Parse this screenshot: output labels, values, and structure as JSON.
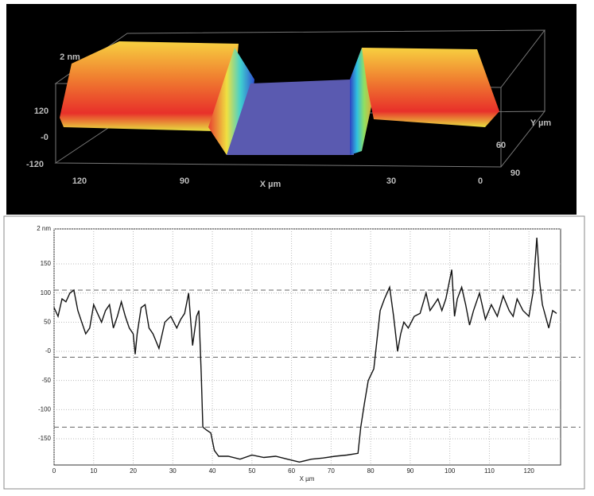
{
  "surface_render": {
    "labels": [
      "2 nm",
      "120",
      "-0",
      "-120",
      "120",
      "90",
      "X µm",
      "30",
      "0",
      "Y µm",
      "60",
      "90"
    ]
  },
  "chart_data": {
    "type": "line",
    "x_label": "X µm",
    "series": [
      {
        "color": "#111111",
        "x": [
          0,
          1,
          2,
          3,
          4,
          5,
          6,
          7,
          8,
          9,
          10,
          11,
          12,
          13,
          14,
          15,
          16,
          17,
          18,
          19,
          20,
          20.5,
          21,
          22,
          23,
          24,
          25,
          26.5,
          28,
          29.5,
          31,
          32,
          33,
          34,
          35,
          36,
          36.6,
          37.2,
          37.6,
          38.5,
          39.6,
          40.5,
          41.6,
          44,
          47,
          50,
          53,
          56,
          59,
          62,
          65,
          68,
          71,
          74,
          76.8,
          77.5,
          78.4,
          79.4,
          80.8,
          82.4,
          83.5,
          84.8,
          85.8,
          86.8,
          87.6,
          88.4,
          89.5,
          91,
          92.5,
          94,
          95,
          96,
          97,
          98,
          99,
          100.5,
          101.2,
          101.9,
          103,
          104,
          105,
          106,
          107.5,
          109,
          110.5,
          112,
          113.5,
          115,
          116,
          117,
          118.5,
          120,
          121,
          122,
          122.7,
          123.4,
          124.2,
          125,
          126,
          127
        ],
        "values": [
          75,
          60,
          90,
          85,
          100,
          105,
          70,
          50,
          30,
          40,
          80,
          65,
          50,
          70,
          80,
          40,
          60,
          85,
          60,
          40,
          30,
          -5,
          30,
          75,
          80,
          40,
          30,
          5,
          50,
          60,
          40,
          55,
          65,
          100,
          10,
          60,
          70,
          -40,
          -130,
          -135,
          -140,
          -170,
          -180,
          -180,
          -185,
          -178,
          -182,
          -180,
          -185,
          -190,
          -185,
          -183,
          -180,
          -178,
          -175,
          -130,
          -90,
          -50,
          -30,
          70,
          90,
          110,
          60,
          0,
          30,
          50,
          40,
          60,
          65,
          100,
          70,
          80,
          90,
          70,
          90,
          140,
          60,
          90,
          110,
          80,
          45,
          70,
          100,
          55,
          80,
          60,
          95,
          70,
          60,
          90,
          70,
          60,
          100,
          195,
          120,
          80,
          60,
          40,
          70,
          65
        ]
      }
    ],
    "xlim": [
      0,
      128
    ],
    "xticks": [
      0,
      10,
      20,
      30,
      40,
      50,
      60,
      70,
      80,
      90,
      100,
      110,
      120
    ],
    "ylim": [
      -195,
      210
    ],
    "yticks": [
      {
        "value": 210,
        "label": "2 nm"
      },
      150,
      100,
      50,
      {
        "value": 0,
        "label": "-0"
      },
      -50,
      -100,
      -150
    ],
    "reference_lines": [
      105,
      -10,
      -130
    ],
    "grid": true
  }
}
